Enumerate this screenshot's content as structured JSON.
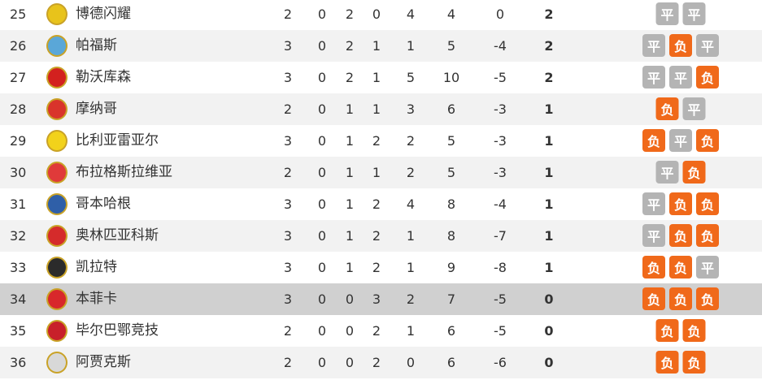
{
  "colors": {
    "loss": "#f0691a",
    "draw": "#b4b4b4"
  },
  "rows": [
    {
      "rank": "25",
      "team": "博德闪耀",
      "logo": "bodo-glimt-logo",
      "logo_color": "#e8c31b",
      "p": "2",
      "w": "0",
      "d": "2",
      "l": "0",
      "gf": "4",
      "ga": "4",
      "gd": "0",
      "pts": "2",
      "form": [
        "平",
        "平"
      ]
    },
    {
      "rank": "26",
      "team": "帕福斯",
      "logo": "pafos-logo",
      "logo_color": "#5aa7d8",
      "p": "3",
      "w": "0",
      "d": "2",
      "l": "1",
      "gf": "1",
      "ga": "5",
      "gd": "-4",
      "pts": "2",
      "form": [
        "平",
        "负",
        "平"
      ]
    },
    {
      "rank": "27",
      "team": "勒沃库森",
      "logo": "leverkusen-logo",
      "logo_color": "#d3211f",
      "p": "3",
      "w": "0",
      "d": "2",
      "l": "1",
      "gf": "5",
      "ga": "10",
      "gd": "-5",
      "pts": "2",
      "form": [
        "平",
        "平",
        "负"
      ]
    },
    {
      "rank": "28",
      "team": "摩纳哥",
      "logo": "monaco-logo",
      "logo_color": "#d9342b",
      "p": "2",
      "w": "0",
      "d": "1",
      "l": "1",
      "gf": "3",
      "ga": "6",
      "gd": "-3",
      "pts": "1",
      "form": [
        "负",
        "平"
      ]
    },
    {
      "rank": "29",
      "team": "比利亚雷亚尔",
      "logo": "villarreal-logo",
      "logo_color": "#f2d21b",
      "p": "3",
      "w": "0",
      "d": "1",
      "l": "2",
      "gf": "2",
      "ga": "5",
      "gd": "-3",
      "pts": "1",
      "form": [
        "负",
        "平",
        "负"
      ]
    },
    {
      "rank": "30",
      "team": "布拉格斯拉维亚",
      "logo": "slavia-praha-logo",
      "logo_color": "#e03a3a",
      "p": "2",
      "w": "0",
      "d": "1",
      "l": "1",
      "gf": "2",
      "ga": "5",
      "gd": "-3",
      "pts": "1",
      "form": [
        "平",
        "负"
      ]
    },
    {
      "rank": "31",
      "team": "哥本哈根",
      "logo": "copenhagen-logo",
      "logo_color": "#2f5fa8",
      "p": "3",
      "w": "0",
      "d": "1",
      "l": "2",
      "gf": "4",
      "ga": "8",
      "gd": "-4",
      "pts": "1",
      "form": [
        "平",
        "负",
        "负"
      ]
    },
    {
      "rank": "32",
      "team": "奥林匹亚科斯",
      "logo": "olympiacos-logo",
      "logo_color": "#d52b2b",
      "p": "3",
      "w": "0",
      "d": "1",
      "l": "2",
      "gf": "1",
      "ga": "8",
      "gd": "-7",
      "pts": "1",
      "form": [
        "平",
        "负",
        "负"
      ]
    },
    {
      "rank": "33",
      "team": "凯拉特",
      "logo": "kairat-logo",
      "logo_color": "#2b2b2b",
      "p": "3",
      "w": "0",
      "d": "1",
      "l": "2",
      "gf": "1",
      "ga": "9",
      "gd": "-8",
      "pts": "1",
      "form": [
        "负",
        "负",
        "平"
      ]
    },
    {
      "rank": "34",
      "team": "本菲卡",
      "logo": "benfica-logo",
      "logo_color": "#d8282b",
      "p": "3",
      "w": "0",
      "d": "0",
      "l": "3",
      "gf": "2",
      "ga": "7",
      "gd": "-5",
      "pts": "0",
      "form": [
        "负",
        "负",
        "负"
      ],
      "highlight": true
    },
    {
      "rank": "35",
      "team": "毕尔巴鄂竞技",
      "logo": "athletic-bilbao-logo",
      "logo_color": "#c8202a",
      "p": "2",
      "w": "0",
      "d": "0",
      "l": "2",
      "gf": "1",
      "ga": "6",
      "gd": "-5",
      "pts": "0",
      "form": [
        "负",
        "负"
      ]
    },
    {
      "rank": "36",
      "team": "阿贾克斯",
      "logo": "ajax-logo",
      "logo_color": "#d8d8d8",
      "p": "2",
      "w": "0",
      "d": "0",
      "l": "2",
      "gf": "0",
      "ga": "6",
      "gd": "-6",
      "pts": "0",
      "form": [
        "负",
        "负"
      ]
    }
  ]
}
